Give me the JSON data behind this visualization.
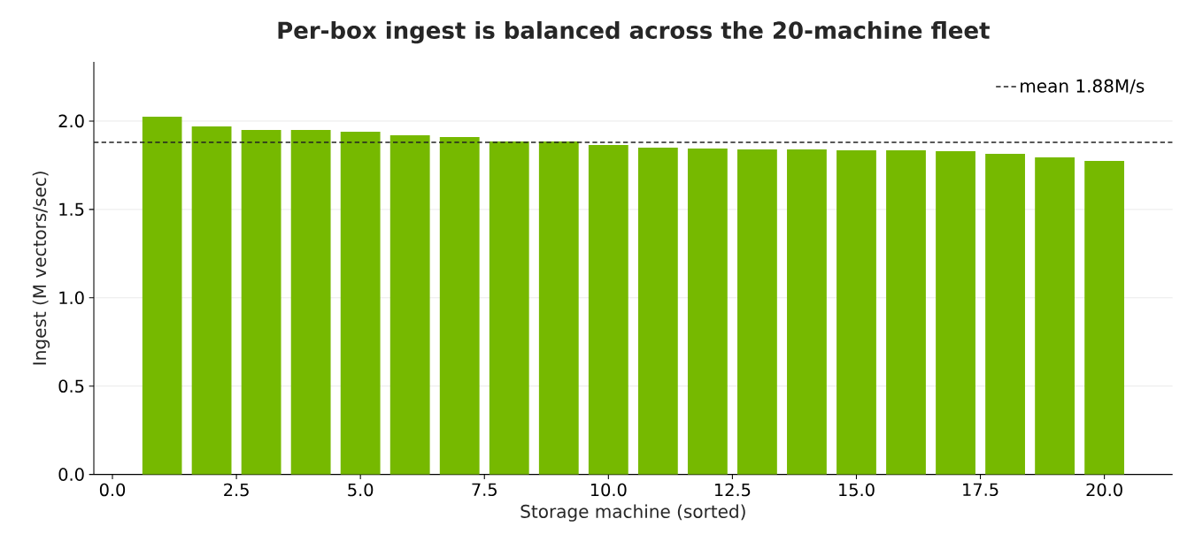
{
  "chart_data": {
    "type": "bar",
    "title": "Per-box ingest is balanced across the 20-machine fleet",
    "xlabel": "Storage machine (sorted)",
    "ylabel": "Ingest (M vectors/sec)",
    "x": [
      1,
      2,
      3,
      4,
      5,
      6,
      7,
      8,
      9,
      10,
      11,
      12,
      13,
      14,
      15,
      16,
      17,
      18,
      19,
      20
    ],
    "values": [
      2.025,
      1.97,
      1.95,
      1.95,
      1.94,
      1.92,
      1.91,
      1.885,
      1.885,
      1.865,
      1.85,
      1.845,
      1.84,
      1.84,
      1.835,
      1.835,
      1.83,
      1.815,
      1.795,
      1.775
    ],
    "color": "#76b900",
    "xlim": [
      -0.375,
      21.375
    ],
    "xticks": [
      {
        "value": 0,
        "label": "0.0"
      },
      2.5,
      {
        "value": 5,
        "label": "5.0"
      },
      7.5,
      {
        "value": 10,
        "label": "10.0"
      },
      12.5,
      {
        "value": 15,
        "label": "15.0"
      },
      17.5,
      {
        "value": 20,
        "label": "20.0"
      }
    ],
    "ylim": [
      0,
      2.335
    ],
    "yticks": [
      {
        "value": 0,
        "label": "0.0"
      },
      0.5,
      {
        "value": 1,
        "label": "1.0"
      },
      1.5,
      {
        "value": 2,
        "label": "2.0"
      }
    ],
    "ref_lines": [
      {
        "axis": "y",
        "value": 1.88,
        "label": "mean 1.88M/s",
        "color": "#222222",
        "line_style": "dashed"
      }
    ],
    "grid": "y",
    "legend": "top right"
  }
}
